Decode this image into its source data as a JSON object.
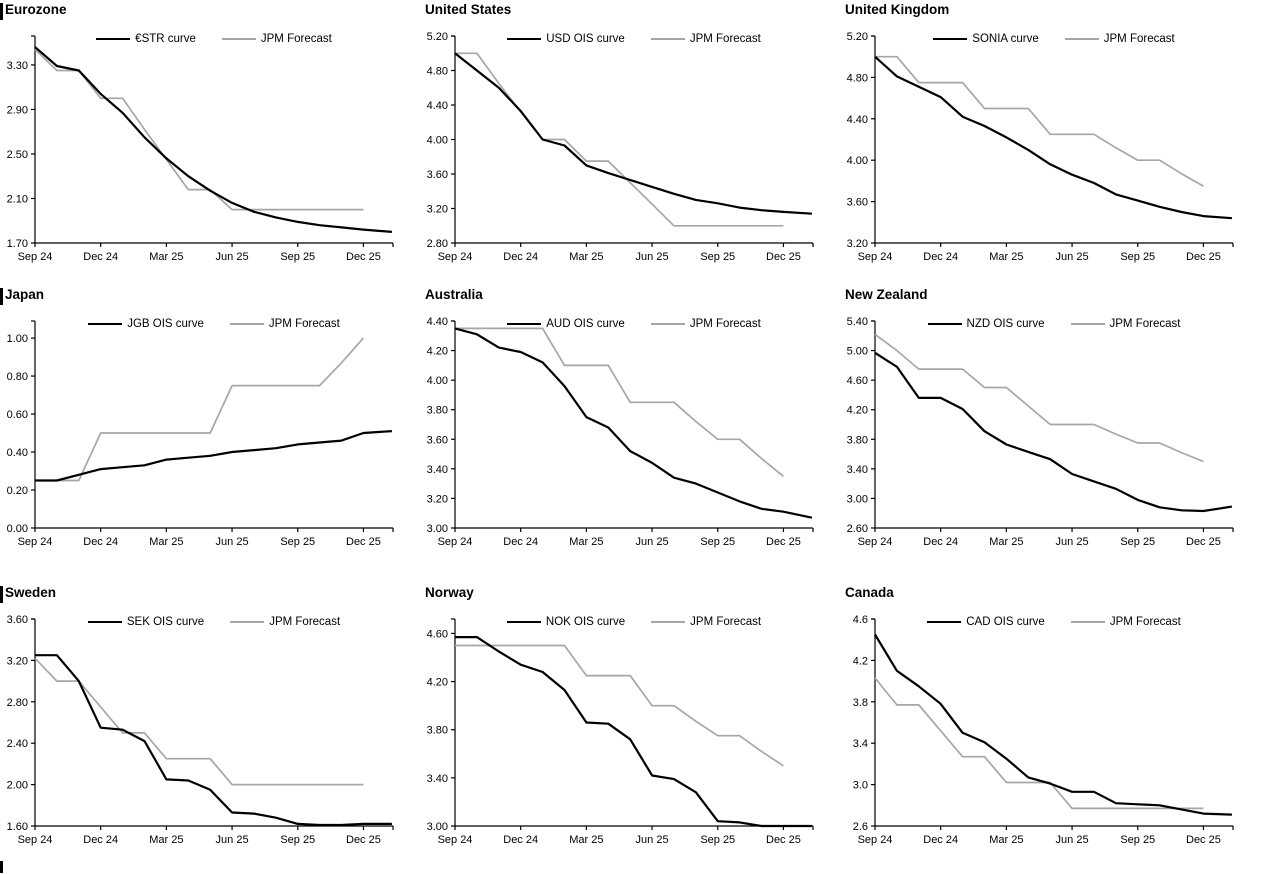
{
  "colors": {
    "curve": "#000000",
    "forecast": "#a6a6a6"
  },
  "chart_data": {
    "type": "line",
    "x_axis": {
      "curve_x": [
        0,
        1,
        2,
        3,
        4,
        5,
        6,
        7,
        8,
        9,
        10,
        11,
        12,
        13,
        14,
        15,
        16.3
      ],
      "forecast_x": [
        0,
        1,
        2,
        3,
        4,
        5,
        6,
        7,
        8,
        9,
        10,
        11,
        12,
        13,
        14,
        15
      ],
      "tick_positions": [
        0,
        3,
        6,
        9,
        12,
        15
      ],
      "tick_labels": [
        "Sep 24",
        "Dec 24",
        "Mar 25",
        "Jun 25",
        "Sep 25",
        "Dec 25"
      ],
      "xlim": [
        0,
        16.35
      ]
    },
    "charts": [
      {
        "title": "Eurozone",
        "edge_mark": true,
        "ylim": [
          1.7,
          3.56
        ],
        "y_ticks": {
          "values": [
            1.7,
            2.1,
            2.5,
            2.9,
            3.3
          ],
          "labels": [
            "1.70",
            "2.10",
            "2.50",
            "2.90",
            "3.30"
          ]
        },
        "series": [
          {
            "name": "€STR curve",
            "role": "curve",
            "color": "#000000",
            "stroke_width": 2.2,
            "x_ref": "curve_x",
            "y": [
              3.46,
              3.29,
              3.25,
              3.04,
              2.87,
              2.65,
              2.46,
              2.3,
              2.17,
              2.06,
              1.98,
              1.93,
              1.89,
              1.86,
              1.84,
              1.82,
              1.8
            ]
          },
          {
            "name": "JPM Forecast",
            "role": "forecast",
            "color": "#a6a6a6",
            "stroke_width": 1.7,
            "x_ref": "forecast_x",
            "y": [
              3.44,
              3.25,
              3.25,
              3.0,
              3.0,
              2.72,
              2.45,
              2.18,
              2.18,
              2.0,
              2.0,
              2.0,
              2.0,
              2.0,
              2.0,
              2.0
            ]
          }
        ]
      },
      {
        "title": "United States",
        "edge_mark": false,
        "ylim": [
          2.8,
          5.2
        ],
        "y_ticks": {
          "values": [
            2.8,
            3.2,
            3.6,
            4.0,
            4.4,
            4.8,
            5.2
          ],
          "labels": [
            "2.80",
            "3.20",
            "3.60",
            "4.00",
            "4.40",
            "4.80",
            "5.20"
          ]
        },
        "series": [
          {
            "name": "USD OIS curve",
            "role": "curve",
            "color": "#000000",
            "stroke_width": 2.2,
            "x_ref": "curve_x",
            "y": [
              5.0,
              4.8,
              4.6,
              4.33,
              4.0,
              3.93,
              3.7,
              3.61,
              3.53,
              3.45,
              3.37,
              3.3,
              3.26,
              3.21,
              3.18,
              3.16,
              3.14
            ]
          },
          {
            "name": "JPM Forecast",
            "role": "forecast",
            "color": "#a6a6a6",
            "stroke_width": 1.7,
            "x_ref": "forecast_x",
            "y": [
              5.0,
              5.0,
              4.65,
              4.32,
              4.0,
              4.0,
              3.75,
              3.75,
              3.5,
              3.25,
              3.0,
              3.0,
              3.0,
              3.0,
              3.0,
              3.0
            ]
          }
        ]
      },
      {
        "title": "United Kingdom",
        "edge_mark": false,
        "ylim": [
          3.2,
          5.2
        ],
        "y_ticks": {
          "values": [
            3.2,
            3.6,
            4.0,
            4.4,
            4.8,
            5.2
          ],
          "labels": [
            "3.20",
            "3.60",
            "4.00",
            "4.40",
            "4.80",
            "5.20"
          ]
        },
        "series": [
          {
            "name": "SONIA curve",
            "role": "curve",
            "color": "#000000",
            "stroke_width": 2.2,
            "x_ref": "curve_x",
            "y": [
              5.0,
              4.81,
              4.71,
              4.61,
              4.42,
              4.33,
              4.22,
              4.1,
              3.96,
              3.86,
              3.78,
              3.67,
              3.61,
              3.55,
              3.5,
              3.46,
              3.44
            ]
          },
          {
            "name": "JPM Forecast",
            "role": "forecast",
            "color": "#a6a6a6",
            "stroke_width": 1.7,
            "x_ref": "forecast_x",
            "y": [
              5.0,
              5.0,
              4.75,
              4.75,
              4.75,
              4.5,
              4.5,
              4.5,
              4.25,
              4.25,
              4.25,
              4.12,
              4.0,
              4.0,
              3.87,
              3.75
            ]
          }
        ]
      },
      {
        "title": "Japan",
        "edge_mark": true,
        "ylim": [
          0.0,
          1.09
        ],
        "y_ticks": {
          "values": [
            0.0,
            0.2,
            0.4,
            0.6,
            0.8,
            1.0
          ],
          "labels": [
            "0.00",
            "0.20",
            "0.40",
            "0.60",
            "0.80",
            "1.00"
          ]
        },
        "series": [
          {
            "name": "JGB OIS curve",
            "role": "curve",
            "color": "#000000",
            "stroke_width": 2.2,
            "x_ref": "curve_x",
            "y": [
              0.25,
              0.25,
              0.28,
              0.31,
              0.32,
              0.33,
              0.36,
              0.37,
              0.38,
              0.4,
              0.41,
              0.42,
              0.44,
              0.45,
              0.46,
              0.5,
              0.51
            ]
          },
          {
            "name": "JPM Forecast",
            "role": "forecast",
            "color": "#a6a6a6",
            "stroke_width": 1.7,
            "x_ref": "forecast_x",
            "y": [
              0.25,
              0.25,
              0.25,
              0.5,
              0.5,
              0.5,
              0.5,
              0.5,
              0.5,
              0.75,
              0.75,
              0.75,
              0.75,
              0.75,
              0.87,
              1.0
            ]
          }
        ]
      },
      {
        "title": "Australia",
        "edge_mark": false,
        "ylim": [
          3.0,
          4.4
        ],
        "y_ticks": {
          "values": [
            3.0,
            3.2,
            3.4,
            3.6,
            3.8,
            4.0,
            4.2,
            4.4
          ],
          "labels": [
            "3.00",
            "3.20",
            "3.40",
            "3.60",
            "3.80",
            "4.00",
            "4.20",
            "4.40"
          ]
        },
        "series": [
          {
            "name": "AUD OIS curve",
            "role": "curve",
            "color": "#000000",
            "stroke_width": 2.2,
            "x_ref": "curve_x",
            "y": [
              4.35,
              4.31,
              4.22,
              4.19,
              4.12,
              3.96,
              3.75,
              3.68,
              3.52,
              3.44,
              3.34,
              3.3,
              3.24,
              3.18,
              3.13,
              3.11,
              3.07
            ]
          },
          {
            "name": "JPM Forecast",
            "role": "forecast",
            "color": "#a6a6a6",
            "stroke_width": 1.7,
            "x_ref": "forecast_x",
            "y": [
              4.35,
              4.35,
              4.35,
              4.35,
              4.35,
              4.1,
              4.1,
              4.1,
              3.85,
              3.85,
              3.85,
              3.72,
              3.6,
              3.6,
              3.47,
              3.35
            ]
          }
        ]
      },
      {
        "title": "New Zealand",
        "edge_mark": false,
        "ylim": [
          2.6,
          5.4
        ],
        "y_ticks": {
          "values": [
            2.6,
            3.0,
            3.4,
            3.8,
            4.2,
            4.6,
            5.0,
            5.4
          ],
          "labels": [
            "2.60",
            "3.00",
            "3.40",
            "3.80",
            "4.20",
            "4.60",
            "5.00",
            "5.40"
          ]
        },
        "series": [
          {
            "name": "NZD OIS curve",
            "role": "curve",
            "color": "#000000",
            "stroke_width": 2.2,
            "x_ref": "curve_x",
            "y": [
              4.97,
              4.78,
              4.36,
              4.36,
              4.21,
              3.91,
              3.73,
              3.63,
              3.53,
              3.33,
              3.23,
              3.13,
              2.98,
              2.88,
              2.84,
              2.83,
              2.89
            ]
          },
          {
            "name": "JPM Forecast",
            "role": "forecast",
            "color": "#a6a6a6",
            "stroke_width": 1.7,
            "x_ref": "forecast_x",
            "y": [
              5.22,
              5.0,
              4.75,
              4.75,
              4.75,
              4.5,
              4.5,
              4.25,
              4.0,
              4.0,
              4.0,
              3.87,
              3.75,
              3.75,
              3.62,
              3.5
            ]
          }
        ]
      },
      {
        "title": "Sweden",
        "edge_mark": true,
        "ylim": [
          1.6,
          3.6
        ],
        "y_ticks": {
          "values": [
            1.6,
            2.0,
            2.4,
            2.8,
            3.2,
            3.6
          ],
          "labels": [
            "1.60",
            "2.00",
            "2.40",
            "2.80",
            "3.20",
            "3.60"
          ]
        },
        "series": [
          {
            "name": "SEK OIS curve",
            "role": "curve",
            "color": "#000000",
            "stroke_width": 2.2,
            "x_ref": "curve_x",
            "y": [
              3.25,
              3.25,
              3.0,
              2.55,
              2.53,
              2.42,
              2.05,
              2.04,
              1.95,
              1.73,
              1.72,
              1.68,
              1.62,
              1.61,
              1.61,
              1.62,
              1.62
            ]
          },
          {
            "name": "JPM Forecast",
            "role": "forecast",
            "color": "#a6a6a6",
            "stroke_width": 1.7,
            "x_ref": "forecast_x",
            "y": [
              3.22,
              3.0,
              3.0,
              2.75,
              2.5,
              2.5,
              2.25,
              2.25,
              2.25,
              2.0,
              2.0,
              2.0,
              2.0,
              2.0,
              2.0,
              2.0
            ]
          }
        ]
      },
      {
        "title": "Norway",
        "edge_mark": false,
        "ylim": [
          3.0,
          4.72
        ],
        "y_ticks": {
          "values": [
            3.0,
            3.4,
            3.8,
            4.2,
            4.6
          ],
          "labels": [
            "3.00",
            "3.40",
            "3.80",
            "4.20",
            "4.60"
          ]
        },
        "series": [
          {
            "name": "NOK OIS curve",
            "role": "curve",
            "color": "#000000",
            "stroke_width": 2.2,
            "x_ref": "curve_x",
            "y": [
              4.57,
              4.57,
              4.45,
              4.34,
              4.28,
              4.13,
              3.86,
              3.85,
              3.72,
              3.42,
              3.39,
              3.28,
              3.04,
              3.03,
              3.0,
              3.0,
              3.0
            ]
          },
          {
            "name": "JPM Forecast",
            "role": "forecast",
            "color": "#a6a6a6",
            "stroke_width": 1.7,
            "x_ref": "forecast_x",
            "y": [
              4.5,
              4.5,
              4.5,
              4.5,
              4.5,
              4.5,
              4.25,
              4.25,
              4.25,
              4.0,
              4.0,
              3.87,
              3.75,
              3.75,
              3.62,
              3.5
            ]
          }
        ]
      },
      {
        "title": "Canada",
        "edge_mark": false,
        "ylim": [
          2.6,
          4.6
        ],
        "y_ticks": {
          "values": [
            2.6,
            3.0,
            3.4,
            3.8,
            4.2,
            4.6
          ],
          "labels": [
            "2.6",
            "3.0",
            "3.4",
            "3.8",
            "4.2",
            "4.6"
          ]
        },
        "series": [
          {
            "name": "CAD OIS curve",
            "role": "curve",
            "color": "#000000",
            "stroke_width": 2.2,
            "x_ref": "curve_x",
            "y": [
              4.45,
              4.1,
              3.95,
              3.78,
              3.5,
              3.41,
              3.25,
              3.07,
              3.01,
              2.93,
              2.93,
              2.82,
              2.81,
              2.8,
              2.76,
              2.72,
              2.71
            ]
          },
          {
            "name": "JPM Forecast",
            "role": "forecast",
            "color": "#a6a6a6",
            "stroke_width": 1.7,
            "x_ref": "forecast_x",
            "y": [
              4.03,
              3.77,
              3.77,
              3.52,
              3.27,
              3.27,
              3.02,
              3.02,
              3.02,
              2.77,
              2.77,
              2.77,
              2.77,
              2.77,
              2.77,
              2.77
            ]
          }
        ]
      }
    ]
  }
}
